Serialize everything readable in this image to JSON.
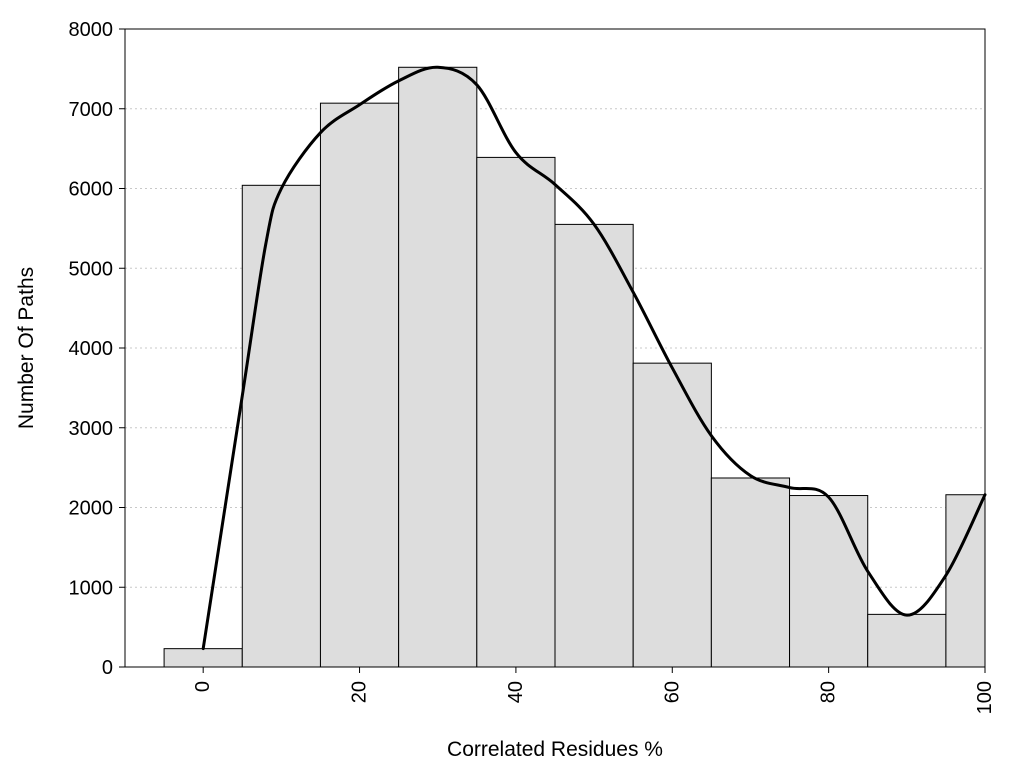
{
  "chart_data": {
    "type": "bar",
    "xlabel": "Correlated Residues %",
    "ylabel": "Number Of Paths",
    "x": [
      0,
      10,
      20,
      30,
      40,
      50,
      60,
      70,
      80,
      90,
      100
    ],
    "values": [
      230,
      6040,
      7070,
      7520,
      6390,
      5550,
      3810,
      2370,
      2150,
      660,
      2160
    ],
    "bin_width": 10,
    "xlim": [
      -10,
      100
    ],
    "ylim": [
      0,
      8000
    ],
    "x_ticks": [
      0,
      20,
      40,
      60,
      80,
      100
    ],
    "y_ticks": [
      0,
      1000,
      2000,
      3000,
      4000,
      5000,
      6000,
      7000,
      8000
    ],
    "grid": "horizontal dotted",
    "bar_color": "#dddddd",
    "curve": {
      "x": [
        0,
        5,
        8,
        10,
        15,
        20,
        25,
        30,
        35,
        40,
        45,
        50,
        55,
        60,
        65,
        70,
        75,
        80,
        85,
        90,
        95,
        100
      ],
      "y": [
        230,
        3400,
        5300,
        6000,
        6700,
        7050,
        7350,
        7520,
        7300,
        6450,
        6050,
        5550,
        4700,
        3750,
        2900,
        2400,
        2250,
        2130,
        1200,
        650,
        1150,
        2160
      ],
      "color": "#000000"
    }
  }
}
